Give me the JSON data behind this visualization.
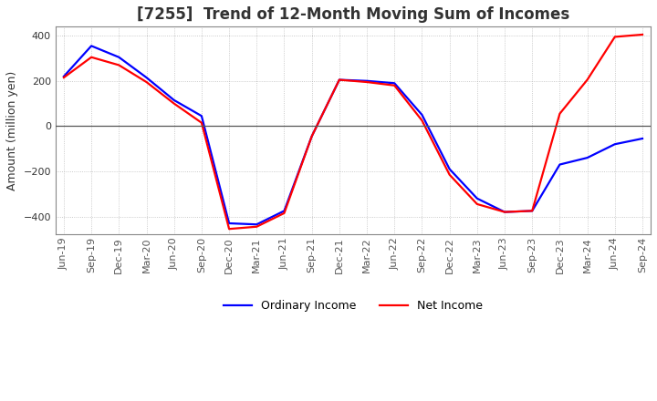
{
  "title": "[7255]  Trend of 12-Month Moving Sum of Incomes",
  "ylabel": "Amount (million yen)",
  "ylim": [
    -480,
    440
  ],
  "yticks": [
    -400,
    -200,
    0,
    200,
    400
  ],
  "x_labels": [
    "Jun-19",
    "Sep-19",
    "Dec-19",
    "Mar-20",
    "Jun-20",
    "Sep-20",
    "Dec-20",
    "Mar-21",
    "Jun-21",
    "Sep-21",
    "Dec-21",
    "Mar-22",
    "Jun-22",
    "Sep-22",
    "Dec-22",
    "Mar-23",
    "Jun-23",
    "Sep-23",
    "Dec-23",
    "Mar-24",
    "Jun-24",
    "Sep-24"
  ],
  "ordinary_income": [
    220,
    355,
    305,
    215,
    115,
    45,
    -430,
    -435,
    -375,
    -45,
    205,
    200,
    190,
    50,
    -190,
    -320,
    -380,
    -375,
    -170,
    -140,
    -80,
    -55
  ],
  "net_income": [
    215,
    305,
    270,
    195,
    100,
    15,
    -455,
    -445,
    -385,
    -45,
    205,
    195,
    180,
    25,
    -215,
    -345,
    -380,
    -375,
    55,
    205,
    395,
    405
  ],
  "ordinary_color": "#0000ff",
  "net_color": "#ff0000",
  "line_width": 1.6,
  "title_fontsize": 12,
  "label_fontsize": 9,
  "tick_fontsize": 8,
  "legend_fontsize": 9,
  "background_color": "#ffffff",
  "grid_color": "#aaaaaa",
  "spine_color": "#888888"
}
